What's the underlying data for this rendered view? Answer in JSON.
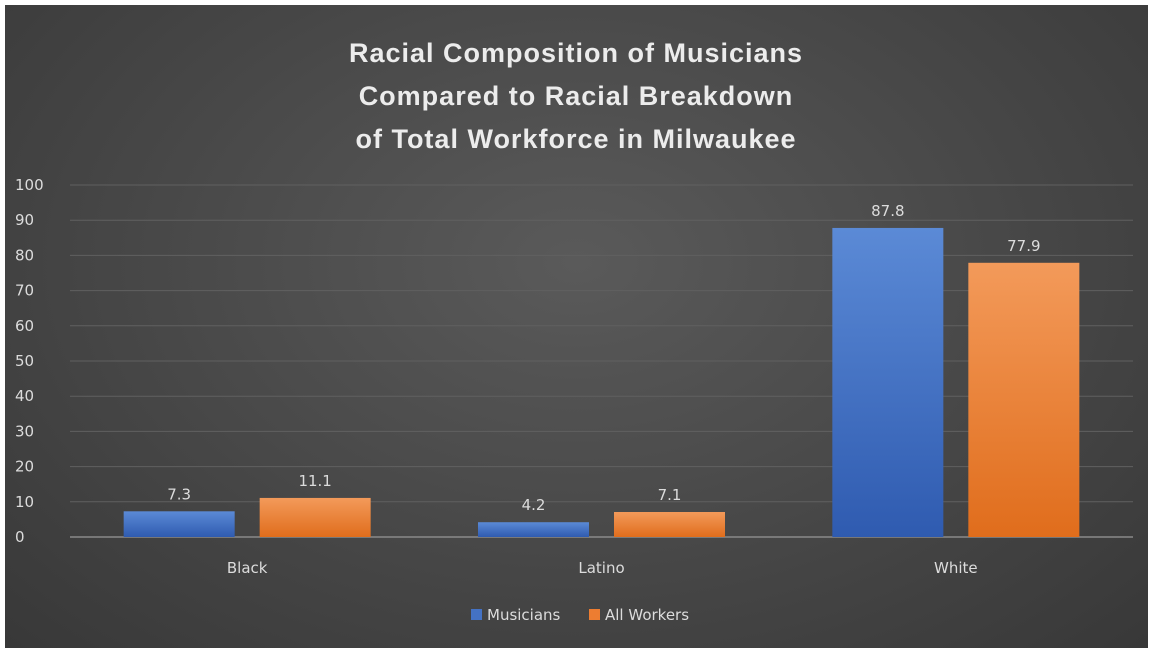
{
  "chart_data": {
    "type": "bar",
    "title_lines": [
      "Racial Composition of Musicians",
      "Compared to Racial Breakdown",
      "of Total Workforce in Milwaukee"
    ],
    "categories": [
      "Black",
      "Latino",
      "White"
    ],
    "series": [
      {
        "name": "Musicians",
        "values": [
          7.3,
          4.2,
          87.8
        ],
        "color": "#4472c4"
      },
      {
        "name": "All Workers",
        "values": [
          11.1,
          7.1,
          77.9
        ],
        "color": "#ed7d31"
      }
    ],
    "ylim": [
      0,
      100
    ],
    "yticks": [
      0,
      10,
      20,
      30,
      40,
      50,
      60,
      70,
      80,
      90,
      100
    ],
    "data_labels": [
      [
        "7.3",
        "4.2",
        "87.8"
      ],
      [
        "11.1",
        "7.1",
        "77.9"
      ]
    ],
    "grid": true,
    "legend": "bottom-center",
    "colors": {
      "background": "#474747",
      "grid": "#606060",
      "text": "#dcdcdc"
    }
  }
}
